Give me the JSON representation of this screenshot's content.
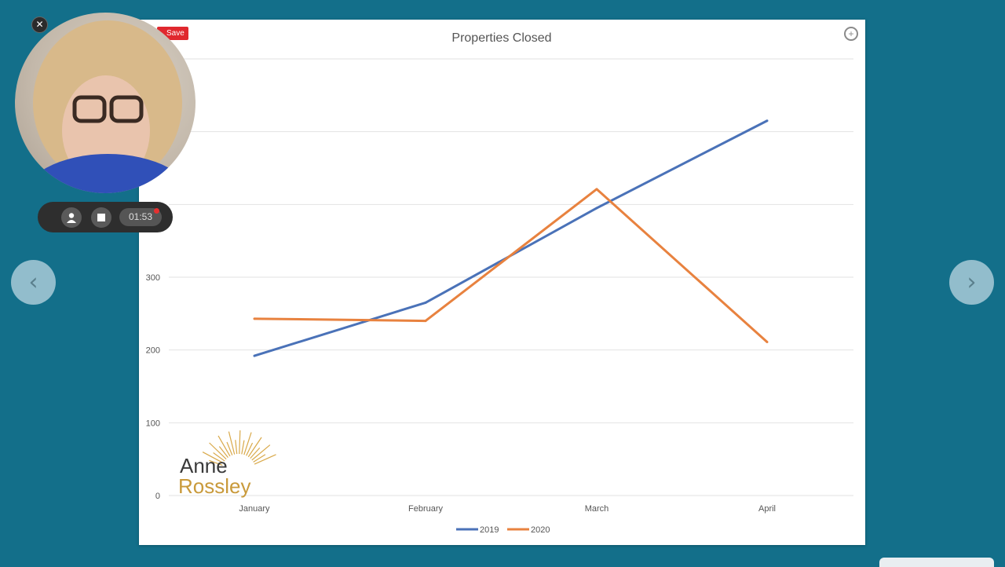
{
  "slide": {
    "save_label": "Save",
    "logo": {
      "line1": "Anne",
      "line2": "Rossley"
    }
  },
  "recorder": {
    "timer": "01:53"
  },
  "icons": {
    "close": "close-icon",
    "prev": "chevron-left-icon",
    "next": "chevron-right-icon",
    "expand": "expand-icon",
    "user": "user-icon",
    "stop": "stop-icon"
  },
  "colors": {
    "background": "#136f8a",
    "series_2019": "#4a72b8",
    "series_2020": "#e8823f",
    "save_tag": "#e0282e"
  },
  "chart_data": {
    "type": "line",
    "title": "Properties Closed",
    "categories": [
      "January",
      "February",
      "March",
      "April"
    ],
    "series": [
      {
        "name": "2019",
        "values": [
          192,
          265,
          395,
          515
        ],
        "color": "#4a72b8"
      },
      {
        "name": "2020",
        "values": [
          243,
          240,
          421,
          211
        ],
        "color": "#e8823f"
      }
    ],
    "yticks": [
      0,
      100,
      200,
      300
    ],
    "ylim": [
      0,
      600
    ],
    "grid": true,
    "legend": "bottom"
  }
}
